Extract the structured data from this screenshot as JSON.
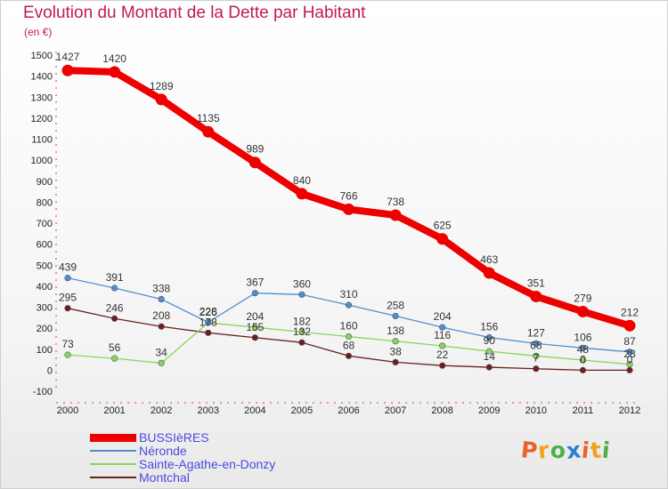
{
  "header": {
    "title": "Evolution du Montant de la Dette par Habitant",
    "subtitle": "(en €)"
  },
  "logo": {
    "letters": [
      "P",
      "r",
      "o",
      "x",
      "i",
      "t",
      "i"
    ],
    "colors": [
      "#e8632b",
      "#f3a11b",
      "#4bb24a",
      "#2f7fd1",
      "#e8632b",
      "#f3a11b",
      "#4bb24a"
    ]
  },
  "chart_data": {
    "type": "line",
    "title": "Evolution du Montant de la Dette par Habitant",
    "ylabel": "(en €)",
    "x": [
      "2000",
      "2001",
      "2002",
      "2003",
      "2004",
      "2005",
      "2006",
      "2007",
      "2008",
      "2009",
      "2010",
      "2011",
      "2012"
    ],
    "ylim": [
      -100,
      1500
    ],
    "yticks": [
      -100,
      0,
      100,
      200,
      300,
      400,
      500,
      600,
      700,
      800,
      900,
      1000,
      1100,
      1200,
      1300,
      1400,
      1500
    ],
    "legend_position": "bottom-left",
    "series": [
      {
        "name": "BUSSIèRES",
        "color": "#ee0000",
        "values": [
          1427,
          1420,
          1289,
          1135,
          989,
          840,
          766,
          738,
          625,
          463,
          351,
          279,
          212
        ]
      },
      {
        "name": "Néronde",
        "color": "#4f8fce",
        "values": [
          439,
          391,
          338,
          228,
          367,
          360,
          310,
          258,
          204,
          156,
          127,
          106,
          87
        ]
      },
      {
        "name": "Sainte-Agathe-en-Donzy",
        "color": "#88d55a",
        "values": [
          73,
          56,
          34,
          226,
          204,
          182,
          160,
          138,
          116,
          90,
          68,
          48,
          28
        ]
      },
      {
        "name": "Montchal",
        "color": "#6d1e1e",
        "values": [
          295,
          246,
          208,
          178,
          155,
          132,
          68,
          38,
          22,
          14,
          7,
          0,
          0
        ]
      }
    ]
  }
}
